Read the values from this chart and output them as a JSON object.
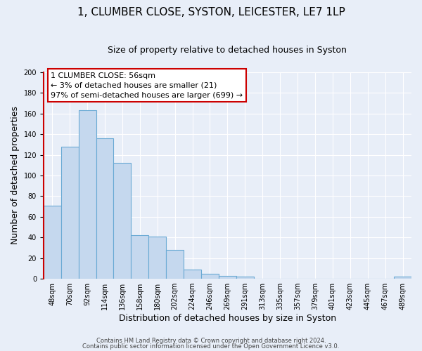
{
  "title": "1, CLUMBER CLOSE, SYSTON, LEICESTER, LE7 1LP",
  "subtitle": "Size of property relative to detached houses in Syston",
  "xlabel": "Distribution of detached houses by size in Syston",
  "ylabel": "Number of detached properties",
  "bin_labels": [
    "48sqm",
    "70sqm",
    "92sqm",
    "114sqm",
    "136sqm",
    "158sqm",
    "180sqm",
    "202sqm",
    "224sqm",
    "246sqm",
    "269sqm",
    "291sqm",
    "313sqm",
    "335sqm",
    "357sqm",
    "379sqm",
    "401sqm",
    "423sqm",
    "445sqm",
    "467sqm",
    "489sqm"
  ],
  "bar_values": [
    71,
    128,
    163,
    136,
    112,
    42,
    41,
    28,
    9,
    5,
    3,
    2,
    0,
    0,
    0,
    0,
    0,
    0,
    0,
    0,
    2
  ],
  "bar_color": "#c5d8ee",
  "bar_edge_color": "#6aaad4",
  "ylim": [
    0,
    200
  ],
  "yticks": [
    0,
    20,
    40,
    60,
    80,
    100,
    120,
    140,
    160,
    180,
    200
  ],
  "annotation_title": "1 CLUMBER CLOSE: 56sqm",
  "annotation_line1": "← 3% of detached houses are smaller (21)",
  "annotation_line2": "97% of semi-detached houses are larger (699) →",
  "annotation_box_color": "#ffffff",
  "annotation_box_edge_color": "#cc0000",
  "footer_line1": "Contains HM Land Registry data © Crown copyright and database right 2024.",
  "footer_line2": "Contains public sector information licensed under the Open Government Licence v3.0.",
  "background_color": "#e8eef8",
  "grid_color": "#ffffff",
  "title_fontsize": 11,
  "subtitle_fontsize": 9,
  "axis_label_fontsize": 9,
  "tick_fontsize": 7,
  "footer_fontsize": 6,
  "annotation_fontsize": 8
}
